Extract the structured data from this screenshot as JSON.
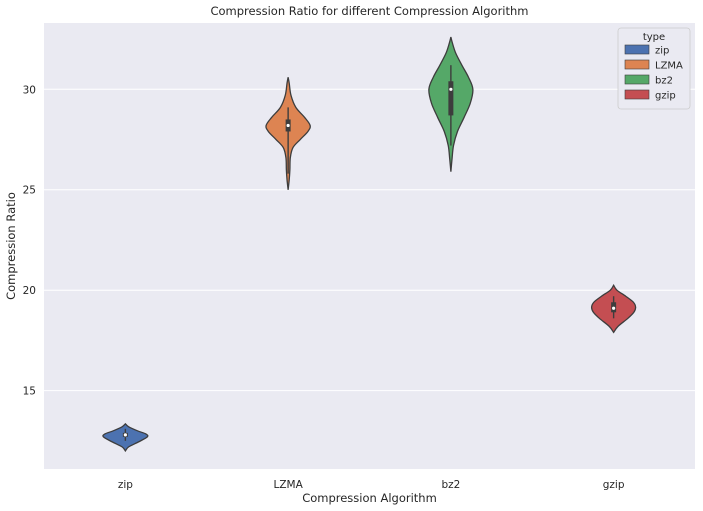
{
  "chart_data": {
    "type": "violin",
    "title": "Compression Ratio for different Compression Algorithm",
    "xlabel": "Compression Algorithm",
    "ylabel": "Compression Ratio",
    "categories": [
      "zip",
      "LZMA",
      "bz2",
      "gzip"
    ],
    "ylim": [
      11.1,
      33.3
    ],
    "yticks": [
      15,
      20,
      25,
      30
    ],
    "grid": true,
    "legend": {
      "title": "type",
      "position": "top-right",
      "entries": [
        "zip",
        "LZMA",
        "bz2",
        "gzip"
      ]
    },
    "series": [
      {
        "category": "zip",
        "color": "#4c72b0",
        "median": 12.8,
        "q1": 12.7,
        "q3": 12.9,
        "whisker_low": 12.5,
        "whisker_high": 13.1,
        "density": [
          [
            12.0,
            0
          ],
          [
            12.2,
            0.15
          ],
          [
            12.45,
            0.6
          ],
          [
            12.7,
            1.0
          ],
          [
            12.85,
            0.92
          ],
          [
            13.0,
            0.55
          ],
          [
            13.2,
            0.15
          ],
          [
            13.35,
            0
          ]
        ]
      },
      {
        "category": "LZMA",
        "color": "#dd8452",
        "median": 28.2,
        "q1": 27.9,
        "q3": 28.5,
        "whisker_low": 25.8,
        "whisker_high": 29.1,
        "density": [
          [
            25.0,
            0
          ],
          [
            25.5,
            0.05
          ],
          [
            26.0,
            0.08
          ],
          [
            26.6,
            0.1
          ],
          [
            27.1,
            0.22
          ],
          [
            27.5,
            0.55
          ],
          [
            27.9,
            0.9
          ],
          [
            28.2,
            1.0
          ],
          [
            28.6,
            0.75
          ],
          [
            29.1,
            0.35
          ],
          [
            29.7,
            0.13
          ],
          [
            30.3,
            0.05
          ],
          [
            30.6,
            0
          ]
        ]
      },
      {
        "category": "bz2",
        "color": "#55a868",
        "median": 30.0,
        "q1": 28.7,
        "q3": 30.4,
        "whisker_low": 27.2,
        "whisker_high": 31.2,
        "density": [
          [
            25.9,
            0
          ],
          [
            26.5,
            0.05
          ],
          [
            27.2,
            0.12
          ],
          [
            27.9,
            0.3
          ],
          [
            28.6,
            0.6
          ],
          [
            29.3,
            0.88
          ],
          [
            30.0,
            1.0
          ],
          [
            30.6,
            0.8
          ],
          [
            31.2,
            0.5
          ],
          [
            31.8,
            0.22
          ],
          [
            32.3,
            0.07
          ],
          [
            32.6,
            0
          ]
        ]
      },
      {
        "category": "gzip",
        "color": "#c44e52",
        "median": 19.1,
        "q1": 18.9,
        "q3": 19.4,
        "whisker_low": 18.6,
        "whisker_high": 19.7,
        "density": [
          [
            17.9,
            0
          ],
          [
            18.2,
            0.2
          ],
          [
            18.6,
            0.65
          ],
          [
            18.9,
            0.92
          ],
          [
            19.15,
            1.0
          ],
          [
            19.4,
            0.9
          ],
          [
            19.7,
            0.55
          ],
          [
            20.0,
            0.15
          ],
          [
            20.25,
            0
          ]
        ]
      }
    ]
  }
}
